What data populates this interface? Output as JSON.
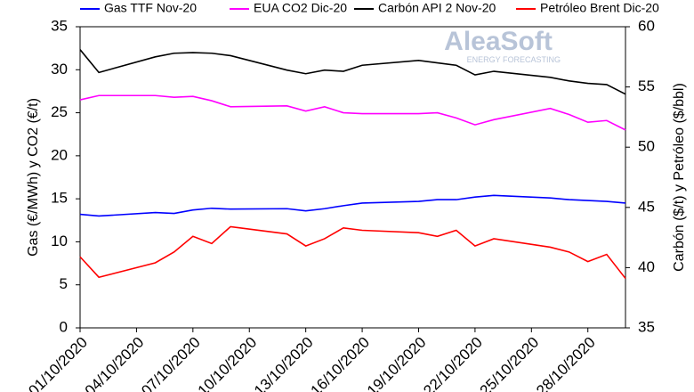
{
  "chart_data": {
    "type": "line",
    "y_label": "Gas (€/MWh) y CO2 (€/t)",
    "y2_label": "Carbón ($/t) y Petróleo ($/bbl)",
    "logo": "AleaSoft",
    "logo_subtitle": "ENERGY FORECASTING",
    "x": [
      "01/10/2020",
      "02/10/2020",
      "05/10/2020",
      "06/10/2020",
      "07/10/2020",
      "08/10/2020",
      "09/10/2020",
      "12/10/2020",
      "13/10/2020",
      "14/10/2020",
      "15/10/2020",
      "16/10/2020",
      "19/10/2020",
      "20/10/2020",
      "21/10/2020",
      "22/10/2020",
      "23/10/2020",
      "26/10/2020",
      "27/10/2020",
      "28/10/2020",
      "29/10/2020",
      "30/10/2020"
    ],
    "xlim": [
      "01/10/2020",
      "30/10/2020"
    ],
    "xticks": [
      "01/10/2020",
      "04/10/2020",
      "07/10/2020",
      "10/10/2020",
      "13/10/2020",
      "16/10/2020",
      "19/10/2020",
      "22/10/2020",
      "25/10/2020",
      "28/10/2020"
    ],
    "ylim": [
      0,
      35
    ],
    "yticks": [
      0,
      5,
      10,
      15,
      20,
      25,
      30,
      35
    ],
    "y2lim": [
      35,
      60
    ],
    "y2ticks": [
      35,
      40,
      45,
      50,
      55,
      60
    ],
    "grid": false,
    "legend": "top",
    "series": [
      {
        "name": "Gas TTF Nov-20",
        "color": "#0000ff",
        "values": [
          13.2,
          13.0,
          13.4,
          13.3,
          13.7,
          13.9,
          13.8,
          13.85,
          13.6,
          13.85,
          14.2,
          14.5,
          14.7,
          14.9,
          14.9,
          15.2,
          15.4,
          15.1,
          14.9,
          14.8,
          14.7,
          14.5
        ]
      },
      {
        "name": "EUA CO2 Dic-20",
        "color": "#ff00ff",
        "values": [
          26.5,
          27.0,
          27.0,
          26.8,
          26.9,
          26.4,
          25.7,
          25.8,
          25.2,
          25.7,
          25.0,
          24.9,
          24.9,
          25.0,
          24.4,
          23.6,
          24.2,
          25.5,
          24.8,
          23.9,
          24.1,
          23.0
        ]
      },
      {
        "name": "Carbón API 2 Nov-20",
        "color": "#000000",
        "axis": "y2",
        "values": [
          58.1,
          56.2,
          57.5,
          57.8,
          57.85,
          57.8,
          57.6,
          56.4,
          56.1,
          56.4,
          56.3,
          56.8,
          57.2,
          57.0,
          56.8,
          56.0,
          56.3,
          55.8,
          55.5,
          55.3,
          55.2,
          54.4
        ]
      },
      {
        "name": "Petróleo Brent Dic-20",
        "color": "#ff0000",
        "axis": "y2",
        "values": [
          40.9,
          39.2,
          40.4,
          41.3,
          42.6,
          42.0,
          43.4,
          42.8,
          41.8,
          42.4,
          43.3,
          43.1,
          42.9,
          42.6,
          43.1,
          41.8,
          42.4,
          41.7,
          41.3,
          40.5,
          41.1,
          39.1
        ]
      }
    ]
  }
}
